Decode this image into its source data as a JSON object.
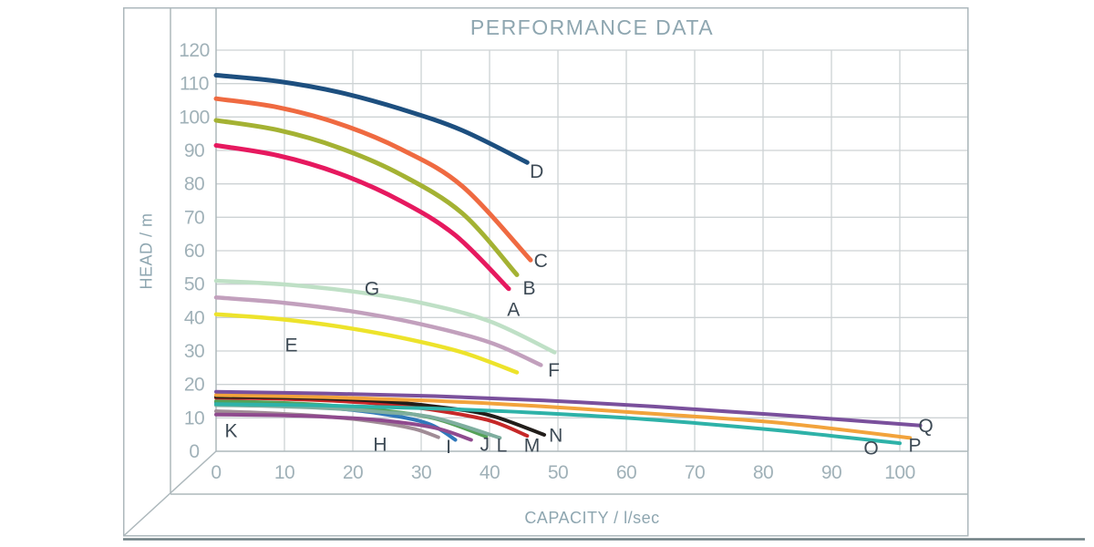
{
  "title": "PERFORMANCE DATA",
  "axes": {
    "x_title": "CAPACITY / l/sec",
    "y_title": "HEAD / m"
  },
  "style": {
    "title_color": "#8ea6b0",
    "tick_color": "#a0b1b8",
    "curve_label_color": "#3d4a55",
    "grid_color": "#cdd2d4",
    "frame_color": "#adb8bc",
    "bottom_rule_color": "#6e7f83",
    "background": "#ffffff"
  },
  "chart_data": {
    "type": "line",
    "title": "PERFORMANCE DATA",
    "xlabel": "CAPACITY / l/sec",
    "ylabel": "HEAD / m",
    "xlim": [
      0,
      110
    ],
    "ylim": [
      0,
      120
    ],
    "x_ticks": [
      0,
      10,
      20,
      30,
      40,
      50,
      60,
      70,
      80,
      90,
      100
    ],
    "y_ticks": [
      0,
      10,
      20,
      30,
      40,
      50,
      60,
      70,
      80,
      90,
      100,
      110,
      120
    ],
    "grid": true,
    "legend_position": "inline-curve-labels",
    "series": [
      {
        "name": "H",
        "color": "#a08c96",
        "width": 4,
        "label_x": 24,
        "label_y": 2.0,
        "points": [
          [
            0,
            12.0
          ],
          [
            8,
            11.4
          ],
          [
            16,
            10.4
          ],
          [
            23,
            8.9
          ],
          [
            29,
            6.7
          ],
          [
            32.5,
            4.2
          ]
        ]
      },
      {
        "name": "I",
        "color": "#3078bb",
        "width": 4,
        "label_x": 34,
        "label_y": 1.4,
        "points": [
          [
            0,
            14.6
          ],
          [
            8,
            14.1
          ],
          [
            16,
            13.1
          ],
          [
            24,
            11.3
          ],
          [
            31,
            8.3
          ],
          [
            35,
            3.4
          ]
        ]
      },
      {
        "name": "K",
        "color": "#8f4a8e",
        "width": 4,
        "label_x": 2.2,
        "label_y": 6.2,
        "points": [
          [
            0,
            11.0
          ],
          [
            8,
            10.8
          ],
          [
            16,
            10.3
          ],
          [
            24,
            9.3
          ],
          [
            32,
            7.0
          ],
          [
            37.3,
            3.4
          ]
        ]
      },
      {
        "name": "J",
        "color": "#55a158",
        "width": 4,
        "label_x": 39.3,
        "label_y": 2.0,
        "points": [
          [
            0,
            15.0
          ],
          [
            8,
            14.6
          ],
          [
            16,
            13.8
          ],
          [
            24,
            12.3
          ],
          [
            32,
            9.8
          ],
          [
            39.5,
            4.4
          ]
        ]
      },
      {
        "name": "L",
        "color": "#7fae9f",
        "width": 4,
        "label_x": 41.8,
        "label_y": 1.8,
        "points": [
          [
            0,
            13.8
          ],
          [
            8,
            13.5
          ],
          [
            16,
            12.9
          ],
          [
            24,
            11.8
          ],
          [
            32,
            10.0
          ],
          [
            41.5,
            4.0
          ]
        ]
      },
      {
        "name": "M",
        "color": "#c62828",
        "width": 4,
        "label_x": 46.2,
        "label_y": 1.8,
        "points": [
          [
            0,
            16.0
          ],
          [
            8,
            15.8
          ],
          [
            16,
            15.2
          ],
          [
            24,
            14.2
          ],
          [
            32,
            12.3
          ],
          [
            40,
            9.2
          ],
          [
            45.5,
            4.6
          ]
        ]
      },
      {
        "name": "N",
        "color": "#221d1a",
        "width": 4,
        "label_x": 49.7,
        "label_y": 4.8,
        "points": [
          [
            0,
            16.3
          ],
          [
            8,
            16.15
          ],
          [
            16,
            15.8
          ],
          [
            24,
            15.0
          ],
          [
            32,
            13.4
          ],
          [
            40,
            10.8
          ],
          [
            48,
            4.9
          ]
        ]
      },
      {
        "name": "O",
        "color": "#2eb2a8",
        "width": 4,
        "label_x": 95.8,
        "label_y": 1.0,
        "points": [
          [
            0,
            14.1
          ],
          [
            16,
            13.7
          ],
          [
            32,
            12.8
          ],
          [
            48,
            11.4
          ],
          [
            64,
            9.4
          ],
          [
            82,
            6.3
          ],
          [
            100,
            2.4
          ]
        ]
      },
      {
        "name": "P",
        "color": "#f2a33c",
        "width": 4,
        "label_x": 102.2,
        "label_y": 1.8,
        "points": [
          [
            0,
            16.8
          ],
          [
            16,
            16.2
          ],
          [
            32,
            15.1
          ],
          [
            48,
            13.4
          ],
          [
            64,
            11.2
          ],
          [
            82,
            8.6
          ],
          [
            101.5,
            4.0
          ]
        ]
      },
      {
        "name": "Q",
        "color": "#7a509c",
        "width": 4,
        "label_x": 103.8,
        "label_y": 7.6,
        "points": [
          [
            0,
            17.8
          ],
          [
            16,
            17.3
          ],
          [
            32,
            16.5
          ],
          [
            48,
            15.2
          ],
          [
            64,
            13.4
          ],
          [
            82,
            10.9
          ],
          [
            103,
            7.7
          ]
        ]
      },
      {
        "name": "E",
        "color": "#ede32b",
        "width": 4.5,
        "label_x": 11,
        "label_y": 31.8,
        "points": [
          [
            0,
            41
          ],
          [
            9,
            39.6
          ],
          [
            18,
            37.3
          ],
          [
            27,
            34.0
          ],
          [
            36,
            29.6
          ],
          [
            44,
            23.6
          ]
        ]
      },
      {
        "name": "F",
        "color": "#c2a0bd",
        "width": 4.5,
        "label_x": 49.4,
        "label_y": 24.3,
        "points": [
          [
            0,
            46
          ],
          [
            10,
            44.4
          ],
          [
            20,
            41.8
          ],
          [
            30,
            38.0
          ],
          [
            40,
            32.6
          ],
          [
            47.5,
            25.8
          ]
        ]
      },
      {
        "name": "G",
        "color": "#bfe0c6",
        "width": 4.5,
        "label_x": 22.8,
        "label_y": 48.7,
        "points": [
          [
            0,
            51
          ],
          [
            10,
            49.9
          ],
          [
            20,
            47.8
          ],
          [
            30,
            44.4
          ],
          [
            40,
            38.9
          ],
          [
            49.5,
            29.6
          ]
        ]
      },
      {
        "name": "A",
        "color": "#e6195f",
        "width": 5,
        "label_x": 43.5,
        "label_y": 42.4,
        "points": [
          [
            0,
            91.5
          ],
          [
            9,
            88.5
          ],
          [
            18,
            83.1
          ],
          [
            27,
            74.9
          ],
          [
            35,
            64.6
          ],
          [
            42.8,
            48.6
          ]
        ]
      },
      {
        "name": "B",
        "color": "#a4b233",
        "width": 5,
        "label_x": 45.8,
        "label_y": 48.8,
        "points": [
          [
            0,
            99
          ],
          [
            9,
            96.1
          ],
          [
            18,
            90.8
          ],
          [
            27,
            82.8
          ],
          [
            36,
            71.2
          ],
          [
            44,
            52.8
          ]
        ]
      },
      {
        "name": "C",
        "color": "#ef6a41",
        "width": 5,
        "label_x": 47.5,
        "label_y": 57.0,
        "points": [
          [
            0,
            105.5
          ],
          [
            9,
            102.9
          ],
          [
            18,
            98.0
          ],
          [
            27,
            90.4
          ],
          [
            36,
            79.3
          ],
          [
            46,
            57.2
          ]
        ]
      },
      {
        "name": "D",
        "color": "#1d4f7f",
        "width": 5,
        "label_x": 46.9,
        "label_y": 83.7,
        "points": [
          [
            0,
            112.5
          ],
          [
            9,
            110.7
          ],
          [
            18,
            107.4
          ],
          [
            27,
            102.4
          ],
          [
            36,
            96.0
          ],
          [
            45.5,
            86.4
          ]
        ]
      }
    ]
  }
}
